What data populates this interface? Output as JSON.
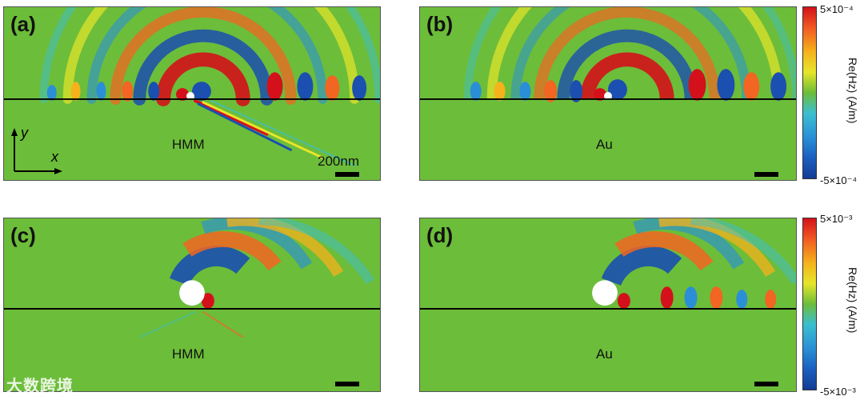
{
  "panels": [
    {
      "label": "(a)",
      "material": "HMM",
      "scale_text": "200nm"
    },
    {
      "label": "(b)",
      "material": "Au",
      "scale_text": ""
    },
    {
      "label": "(c)",
      "material": "HMM",
      "scale_text": ""
    },
    {
      "label": "(d)",
      "material": "Au",
      "scale_text": ""
    }
  ],
  "axes": {
    "y": "y",
    "x": "x"
  },
  "colorbars": [
    {
      "max": "5×10⁻⁴",
      "min": "-5×10⁻⁴",
      "label": "Re(Hz) (A/m)"
    },
    {
      "max": "5×10⁻³",
      "min": "-5×10⁻³",
      "label": "Re(Hz) (A/m)"
    }
  ],
  "colors": {
    "background": "#6cbd3a",
    "red": "#d4111b",
    "orange": "#f26522",
    "yellow": "#e7e52a",
    "cyan": "#3bbfd0",
    "blue": "#1b4fb0"
  },
  "watermark": "大数跨境"
}
